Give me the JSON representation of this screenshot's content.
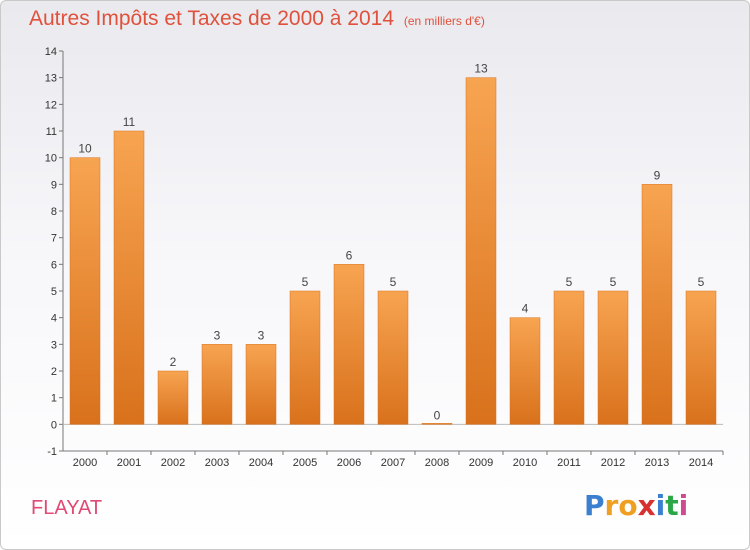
{
  "title": "Autres Impôts et Taxes de 2000 à 2014",
  "unit": "(en milliers d'€)",
  "town": "FLAYAT",
  "brand": {
    "letters": [
      "P",
      "r",
      "o",
      "x",
      "i",
      "t",
      "i"
    ],
    "colors": [
      "#3a7fd0",
      "#f0a020",
      "#f0a020",
      "#d83030",
      "#3a7fd0",
      "#2aa848",
      "#d04a90"
    ]
  },
  "colors": {
    "bar_light": "#f7a451",
    "bar_dark": "#d9711c",
    "title": "#e0513c",
    "town": "#e04a74"
  },
  "chart_data": {
    "type": "bar",
    "categories": [
      "2000",
      "2001",
      "2002",
      "2003",
      "2004",
      "2005",
      "2006",
      "2007",
      "2008",
      "2009",
      "2010",
      "2011",
      "2012",
      "2013",
      "2014"
    ],
    "values": [
      10,
      11,
      2,
      3,
      3,
      5,
      6,
      5,
      0,
      13,
      4,
      5,
      5,
      9,
      5
    ],
    "title": "Autres Impôts et Taxes de 2000 à 2014",
    "xlabel": "",
    "ylabel": "",
    "ylim": [
      -1,
      14
    ],
    "yticks": [
      "-1",
      "0",
      "1",
      "2",
      "3",
      "4",
      "5",
      "6",
      "7",
      "8",
      "9",
      "10",
      "11",
      "12",
      "13",
      "14"
    ],
    "grid": false
  }
}
